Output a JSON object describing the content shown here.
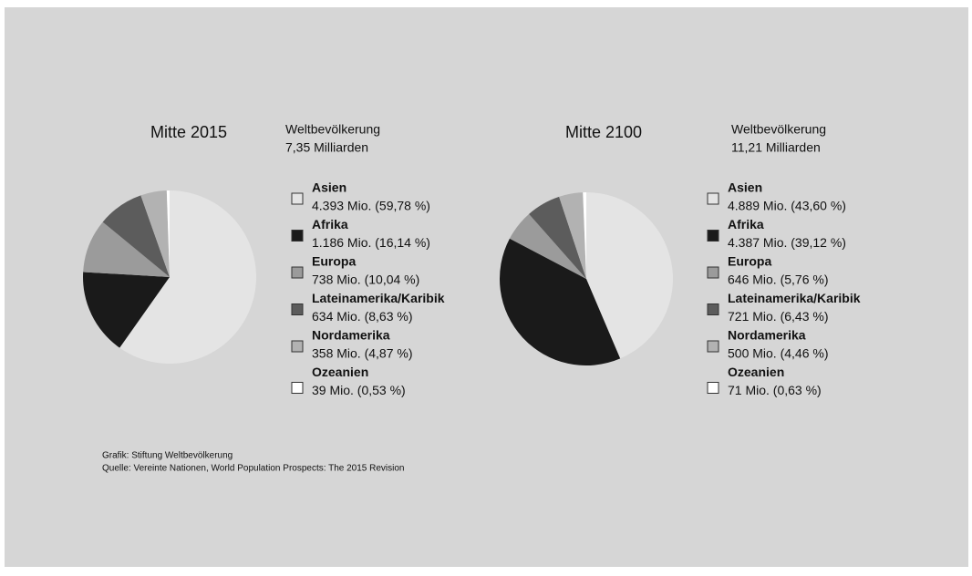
{
  "chart_data": [
    {
      "type": "pie",
      "title": "Mitte 2015",
      "subtitle": [
        "Weltbevölkerung",
        "7,35 Milliarden"
      ],
      "categories": [
        "Asien",
        "Afrika",
        "Europa",
        "Lateinamerika/Karibik",
        "Nordamerika",
        "Ozeanien"
      ],
      "values": [
        59.78,
        16.14,
        10.04,
        8.63,
        4.87,
        0.53
      ],
      "value_labels": [
        "4.393 Mio. (59,78 %)",
        "1.186 Mio. (16,14 %)",
        "738 Mio. (10,04 %)",
        "634 Mio. (8,63 %)",
        "358 Mio. (4,87 %)",
        "39 Mio. (0,53 %)"
      ],
      "colors": [
        "#e4e4e4",
        "#1a1a1a",
        "#9b9b9b",
        "#5c5c5c",
        "#b2b2b2",
        "#ffffff"
      ]
    },
    {
      "type": "pie",
      "title": "Mitte 2100",
      "subtitle": [
        "Weltbevölkerung",
        "11,21 Milliarden"
      ],
      "categories": [
        "Asien",
        "Afrika",
        "Europa",
        "Lateinamerika/Karibik",
        "Nordamerika",
        "Ozeanien"
      ],
      "values": [
        43.6,
        39.12,
        5.76,
        6.43,
        4.46,
        0.63
      ],
      "value_labels": [
        "4.889 Mio. (43,60 %)",
        "4.387 Mio. (39,12 %)",
        "646 Mio. (5,76 %)",
        "721 Mio. (6,43 %)",
        "500 Mio. (4,46 %)",
        "71 Mio. (0,63 %)"
      ],
      "colors": [
        "#e4e4e4",
        "#1a1a1a",
        "#9b9b9b",
        "#5c5c5c",
        "#b2b2b2",
        "#ffffff"
      ]
    }
  ],
  "source": [
    "Grafik: Stiftung Weltbevölkerung",
    "Quelle: Vereinte Nationen, World Population Prospects: The 2015 Revision"
  ]
}
